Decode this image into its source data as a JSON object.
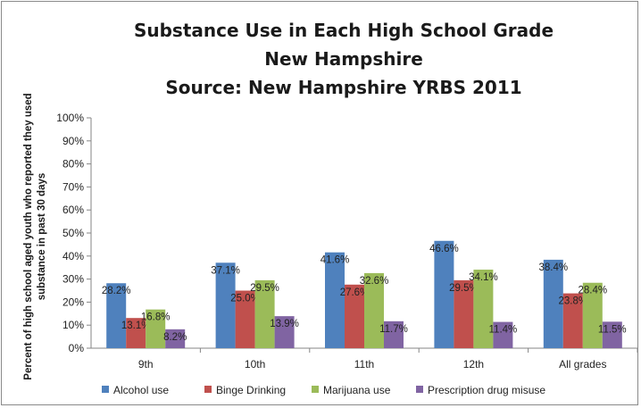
{
  "chart_data": {
    "type": "bar",
    "title_lines": [
      "Substance Use in Each High School Grade",
      "New Hampshire",
      "Source: New Hampshire YRBS 2011"
    ],
    "ylabel": "Percent of high school aged youth who reported they used substance in past 30 days",
    "xlabel": "",
    "categories": [
      "9th",
      "10th",
      "11th",
      "12th",
      "All grades"
    ],
    "ylim": [
      0,
      100
    ],
    "y_ticks": [
      "0%",
      "10%",
      "20%",
      "30%",
      "40%",
      "50%",
      "60%",
      "70%",
      "80%",
      "90%",
      "100%"
    ],
    "grid": false,
    "legend_position": "bottom",
    "series": [
      {
        "name": "Alcohol use",
        "color": "#4f81bd",
        "values": [
          28.2,
          37.1,
          41.6,
          46.6,
          38.4
        ],
        "labels": [
          "28.2%",
          "37.1%",
          "41.6%",
          "46.6%",
          "38.4%"
        ]
      },
      {
        "name": "Binge Drinking",
        "color": "#c0504d",
        "values": [
          13.1,
          25.0,
          27.6,
          29.5,
          23.8
        ],
        "labels": [
          "13.1%",
          "25.0%",
          "27.6%",
          "29.5%",
          "23.8%"
        ]
      },
      {
        "name": "Marijuana use",
        "color": "#9bbb59",
        "values": [
          16.8,
          29.5,
          32.6,
          34.1,
          28.4
        ],
        "labels": [
          "16.8%",
          "29.5%",
          "32.6%",
          "34.1%",
          "28.4%"
        ]
      },
      {
        "name": "Prescription drug misuse",
        "color": "#8064a2",
        "values": [
          8.2,
          13.9,
          11.7,
          11.4,
          11.5
        ],
        "labels": [
          "8.2%",
          "13.9%",
          "11.7%",
          "11.4%",
          "11.5%"
        ]
      }
    ]
  }
}
